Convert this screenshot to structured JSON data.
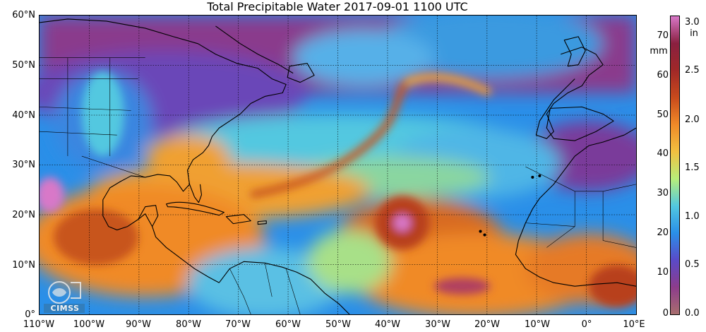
{
  "title": "Total Precipitable Water  2017-09-01 1100 UTC",
  "map": {
    "projection": "equirectangular",
    "lon_range": [
      "110°W",
      "10°E"
    ],
    "lat_range": [
      "0°",
      "60°N"
    ],
    "grid": true,
    "colors": {
      "dry_purple": "#8a3a8c",
      "blue": "#2a8fe8",
      "cyan": "#52c8e0",
      "green": "#9de07a",
      "orange": "#f08a28",
      "red_brown": "#b8401e",
      "pink_max": "#d878c8"
    }
  },
  "lat_labels": [
    "60°N",
    "50°N",
    "40°N",
    "30°N",
    "20°N",
    "10°N",
    "0°"
  ],
  "lon_labels": [
    "110°W",
    "100°W",
    "90°W",
    "80°W",
    "70°W",
    "60°W",
    "50°W",
    "40°W",
    "30°W",
    "20°W",
    "10°W",
    "0°",
    "10°E"
  ],
  "colorbar": {
    "mm_unit": "mm",
    "in_unit": "in",
    "mm_ticks": [
      "70",
      "60",
      "50",
      "40",
      "30",
      "20",
      "10",
      "0"
    ],
    "in_ticks": [
      "3.0",
      "2.5",
      "2.0",
      "1.5",
      "1.0",
      "0.5",
      "0.0"
    ],
    "range_mm": [
      0,
      76
    ],
    "colors": [
      "#a86e6e",
      "#8c3c8c",
      "#5a4ac8",
      "#2a8fe8",
      "#52c8e0",
      "#b8ee7a",
      "#f2c040",
      "#f08a28",
      "#c84a1c",
      "#a02828",
      "#8a2040",
      "#d878c8"
    ]
  },
  "logo": {
    "text": "CIMSS"
  }
}
